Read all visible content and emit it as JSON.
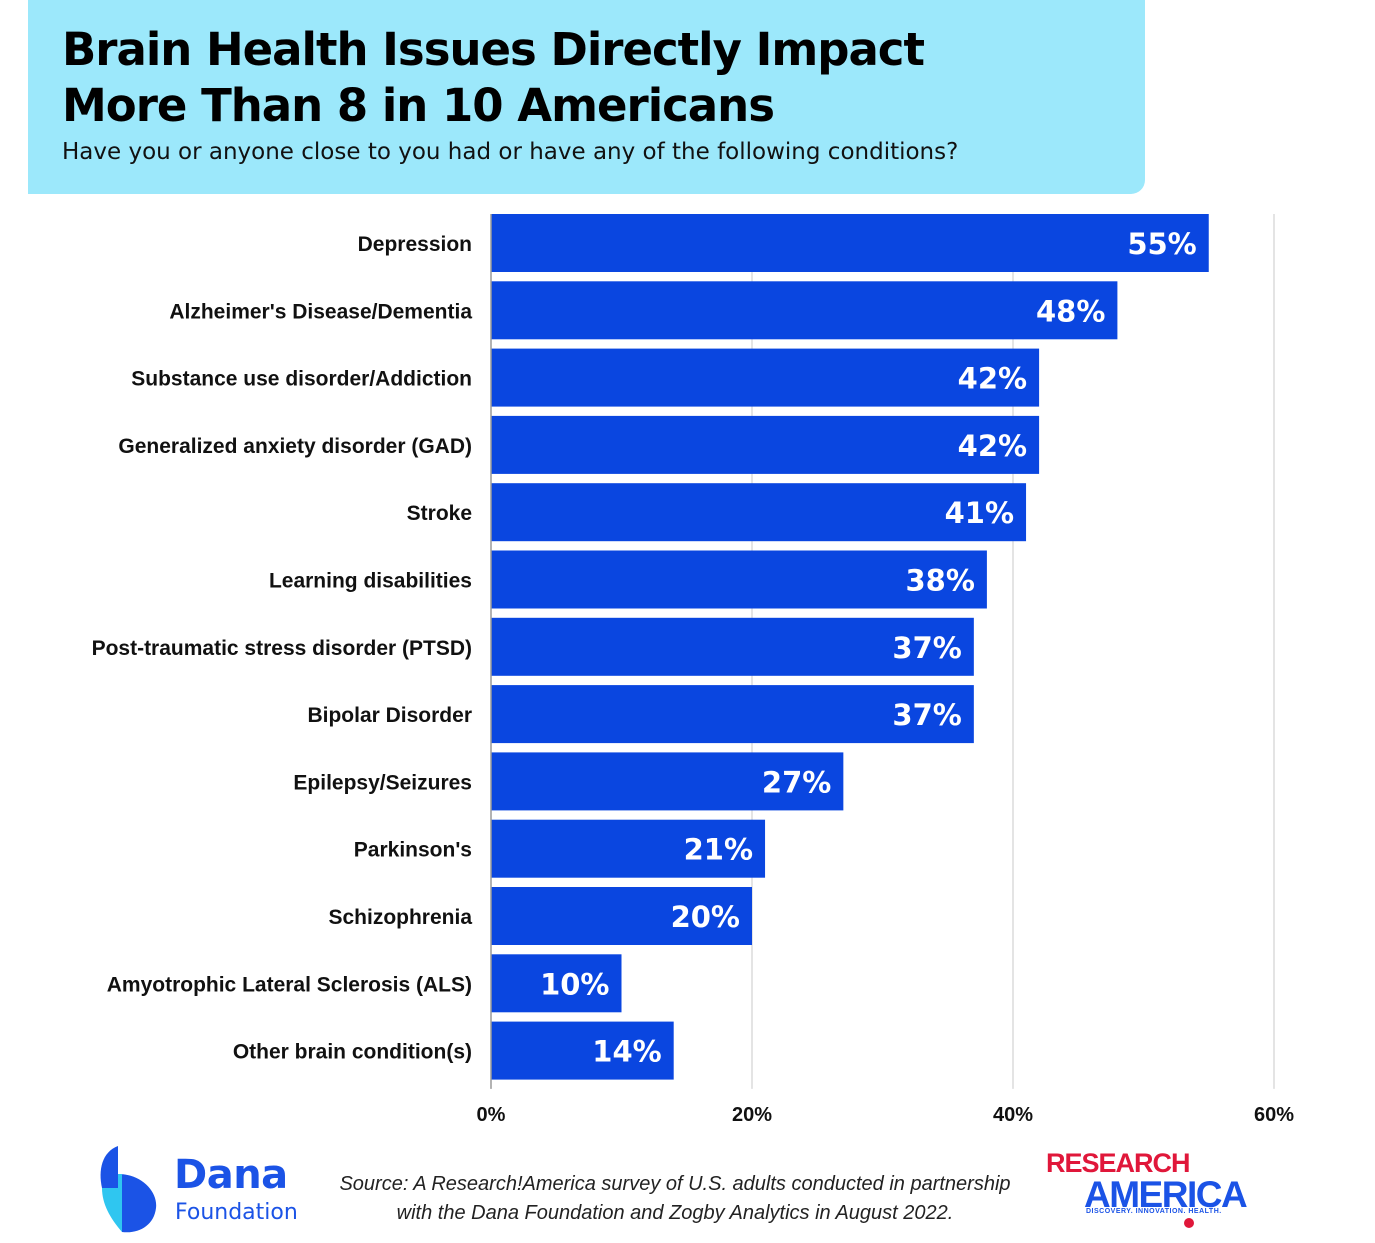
{
  "header": {
    "title_line1": "Brain Health Issues Directly Impact",
    "title_line2": "More Than 8 in 10 Americans",
    "subtitle": "Have you or anyone close to you had or have any of the following conditions?"
  },
  "chart_data": {
    "type": "bar",
    "orientation": "horizontal",
    "title": "Brain Health Issues Directly Impact More Than 8 in 10 Americans",
    "subtitle": "Have you or anyone close to you had or have any of the following conditions?",
    "categories": [
      "Depression",
      "Alzheimer's Disease/Dementia",
      "Substance use disorder/Addiction",
      "Generalized anxiety disorder (GAD)",
      "Stroke",
      "Learning disabilities",
      "Post-traumatic stress disorder (PTSD)",
      "Bipolar Disorder",
      "Epilepsy/Seizures",
      "Parkinson's",
      "Schizophrenia",
      "Amyotrophic Lateral Sclerosis (ALS)",
      "Other brain condition(s)"
    ],
    "values": [
      55,
      48,
      42,
      42,
      41,
      38,
      37,
      37,
      27,
      21,
      20,
      10,
      14
    ],
    "value_labels": [
      "55%",
      "48%",
      "42%",
      "42%",
      "41%",
      "38%",
      "37%",
      "37%",
      "27%",
      "21%",
      "20%",
      "10%",
      "14%"
    ],
    "xlim": [
      0,
      60
    ],
    "x_ticks": [
      0,
      20,
      40,
      60
    ],
    "x_tick_labels": [
      "0%",
      "20%",
      "40%",
      "60%"
    ],
    "grid": true,
    "bar_color": "#0a46e0"
  },
  "footer": {
    "source_line1": "Source: A Research!America survey of U.S. adults conducted in partnership",
    "source_line2": "with the Dana Foundation and Zogby Analytics in August 2022.",
    "dana_name": "Dana",
    "dana_sub": "Foundation",
    "ra_top": "RESEARCH",
    "ra_bottom": "AMERICA",
    "ra_tagline": "DISCOVERY. INNOVATION. HEALTH."
  },
  "colors": {
    "header_bg": "#9ce8fb",
    "bar": "#0a46e0",
    "brand_blue": "#1b53e6",
    "brand_red": "#e0173a",
    "grid": "#e4e4e4"
  }
}
